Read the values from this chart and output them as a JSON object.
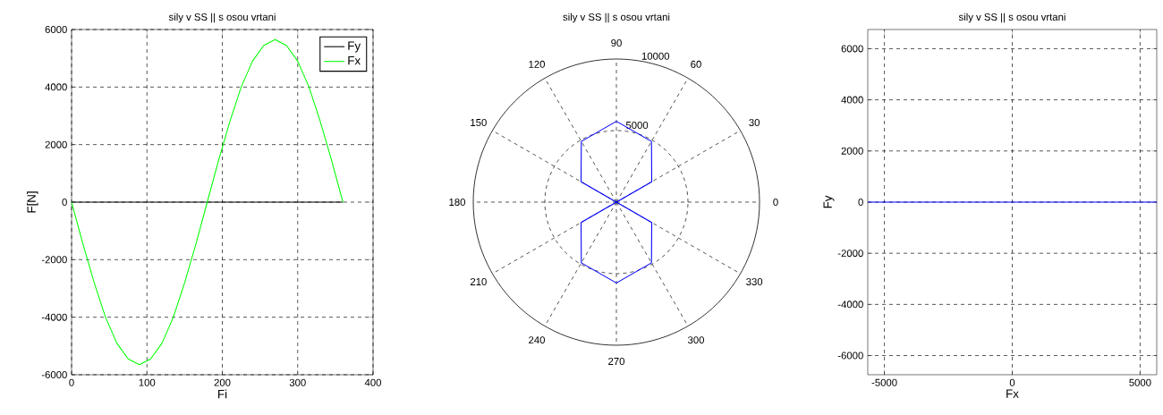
{
  "chart_data": [
    {
      "type": "line",
      "title": "sily v SS || s osou vrtani",
      "xlabel": "Fi",
      "ylabel": "F[N]",
      "x": [
        0,
        15,
        30,
        45,
        60,
        75,
        90,
        105,
        120,
        135,
        150,
        165,
        180,
        195,
        210,
        225,
        240,
        255,
        270,
        285,
        300,
        315,
        330,
        345,
        360
      ],
      "series": [
        {
          "name": "Fy",
          "color": "#000000",
          "values": [
            0,
            0,
            0,
            0,
            0,
            0,
            0,
            0,
            0,
            0,
            0,
            0,
            0,
            0,
            0,
            0,
            0,
            0,
            0,
            0,
            0,
            0,
            0,
            0,
            0
          ]
        },
        {
          "name": "Fx",
          "color": "#00ff00",
          "values": [
            0,
            -1450,
            -2800,
            -4000,
            -4900,
            -5450,
            -5650,
            -5450,
            -4900,
            -4000,
            -2800,
            -1450,
            0,
            1450,
            2800,
            4000,
            4900,
            5450,
            5650,
            5450,
            4900,
            4000,
            2800,
            1450,
            0
          ]
        }
      ],
      "xlim": [
        0,
        400
      ],
      "ylim": [
        -6000,
        6000
      ],
      "xticks": [
        0,
        100,
        200,
        300,
        400
      ],
      "yticks": [
        -6000,
        -4000,
        -2000,
        0,
        2000,
        4000,
        6000
      ],
      "grid": true,
      "legend": "top right"
    },
    {
      "type": "radar",
      "title": "sily v SS || s osou vrtani",
      "categories": [
        "90",
        "60",
        "30",
        "0",
        "330",
        "300",
        "270",
        "240",
        "210",
        "180",
        "150",
        "120"
      ],
      "series": [
        {
          "color": "#0000ff",
          "values": [
            5650,
            4900,
            2850,
            0,
            2850,
            4900,
            5650,
            4900,
            2850,
            0,
            2850,
            4900
          ]
        }
      ],
      "ylim": [
        0,
        10000
      ],
      "yticks": [
        5000,
        10000
      ],
      "grid": true
    },
    {
      "type": "line",
      "title": "sily v SS || s osou vrtani",
      "xlabel": "Fx",
      "ylabel": "Fy",
      "x": [
        -5650,
        5650
      ],
      "series": [
        {
          "color": "#0000ff",
          "values": [
            0,
            0
          ]
        }
      ],
      "xlim": [
        -5650,
        5650
      ],
      "ylim": [
        -6750,
        6750
      ],
      "xticks": [
        -5000,
        0,
        5000
      ],
      "yticks": [
        -6000,
        -4000,
        -2000,
        0,
        2000,
        4000,
        6000
      ],
      "grid": true
    }
  ]
}
